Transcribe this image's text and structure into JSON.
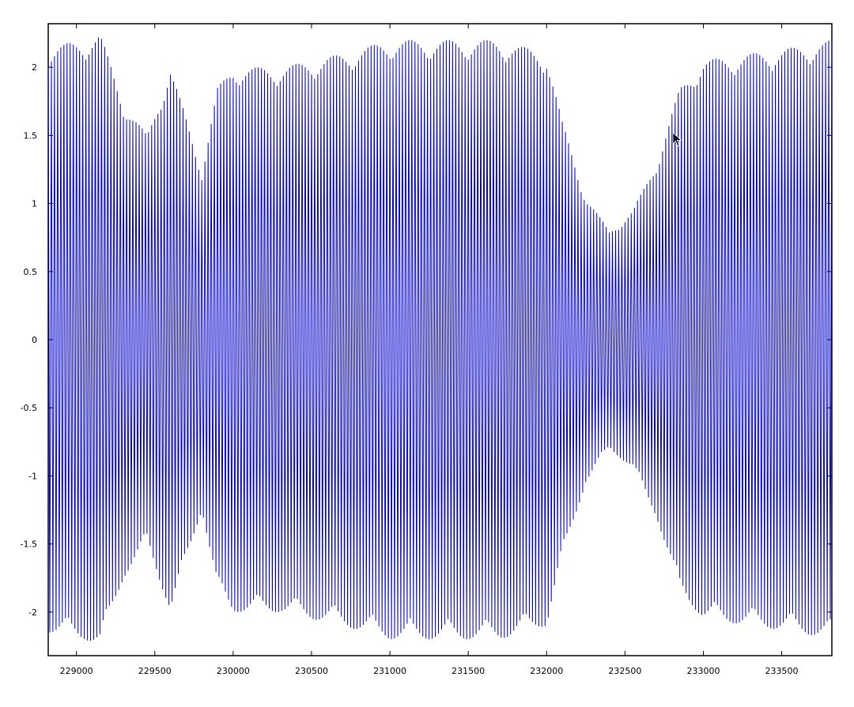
{
  "chart_data": {
    "type": "line",
    "title": "",
    "xlabel": "",
    "ylabel": "",
    "xlim": [
      228820,
      233820
    ],
    "ylim": [
      -2.32,
      2.32
    ],
    "grid": false,
    "x_ticks": [
      229000,
      229500,
      230000,
      230500,
      231000,
      231500,
      232000,
      232500,
      233000,
      233500
    ],
    "y_ticks": [
      -2,
      -1.5,
      -1,
      -0.5,
      0,
      0.5,
      1,
      1.5,
      2
    ],
    "line_color": "#0000cc",
    "sample_spacing": 20,
    "envelope": {
      "x": [
        228820,
        229050,
        229150,
        229300,
        229450,
        229600,
        229800,
        229900,
        230000,
        230300,
        230700,
        231000,
        231300,
        231700,
        232000,
        232100,
        232250,
        232400,
        232550,
        232700,
        232850,
        233000,
        233300,
        233600,
        233820
      ],
      "amplitude": [
        2.15,
        2.2,
        2.25,
        1.75,
        1.5,
        2.0,
        1.25,
        1.85,
        2.0,
        2.0,
        2.1,
        2.2,
        2.2,
        2.2,
        2.1,
        1.6,
        1.05,
        0.8,
        0.95,
        1.3,
        1.85,
        2.05,
        2.1,
        2.15,
        2.2
      ]
    }
  },
  "cursor": {
    "icon": "mouse-pointer-icon"
  }
}
